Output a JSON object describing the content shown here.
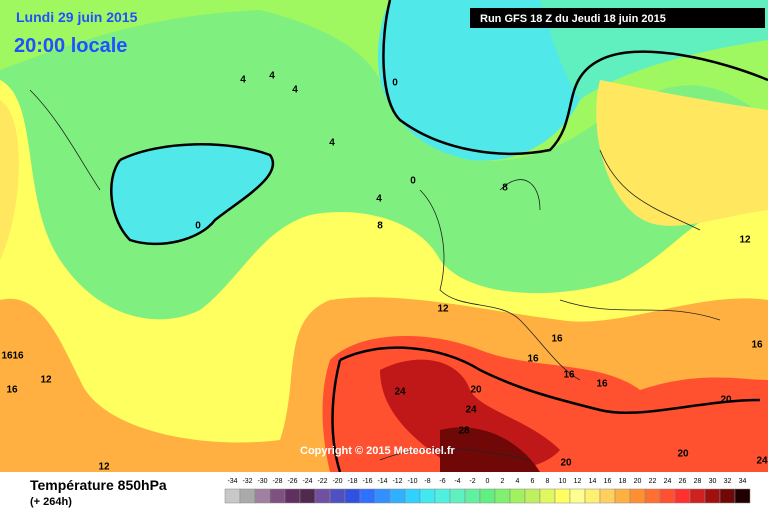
{
  "header": {
    "date": "Lundi 29 juin 2015",
    "time": "20:00 locale",
    "run": "Run GFS 18 Z du Jeudi 18 juin 2015"
  },
  "copyright": "Copyright © 2015 Meteociel.fr",
  "footer": {
    "title": "Température 850hPa",
    "lead": "(+ 264h)"
  },
  "legend": {
    "values": [
      -34,
      -32,
      -30,
      -28,
      -26,
      -24,
      -22,
      -20,
      -18,
      -16,
      -14,
      -12,
      -10,
      -8,
      -6,
      -4,
      -2,
      0,
      2,
      4,
      6,
      8,
      10,
      12,
      14,
      16,
      18,
      20,
      22,
      24,
      26,
      28,
      30,
      32,
      34
    ],
    "colors": [
      "#c8c8c8",
      "#aaaaaa",
      "#a080a0",
      "#805080",
      "#603060",
      "#502850",
      "#7050a0",
      "#5050c0",
      "#3050e0",
      "#3070ff",
      "#3090ff",
      "#30b0ff",
      "#30d0ff",
      "#40e8f0",
      "#50f0e0",
      "#60f0c0",
      "#60f0a0",
      "#60f080",
      "#80f070",
      "#a0f060",
      "#c0f060",
      "#e0f860",
      "#ffff60",
      "#ffff90",
      "#fff070",
      "#ffd060",
      "#ffb040",
      "#ff9030",
      "#ff7030",
      "#ff5030",
      "#ff3030",
      "#d02020",
      "#a01010",
      "#700808",
      "#200000"
    ]
  },
  "contour_labels": [
    0,
    4,
    4,
    4,
    4,
    0,
    4,
    0,
    8,
    8,
    12,
    12,
    16,
    16,
    16,
    12,
    12,
    16,
    16,
    16,
    16,
    16,
    24,
    20,
    24,
    28,
    20,
    20,
    20,
    24
  ]
}
